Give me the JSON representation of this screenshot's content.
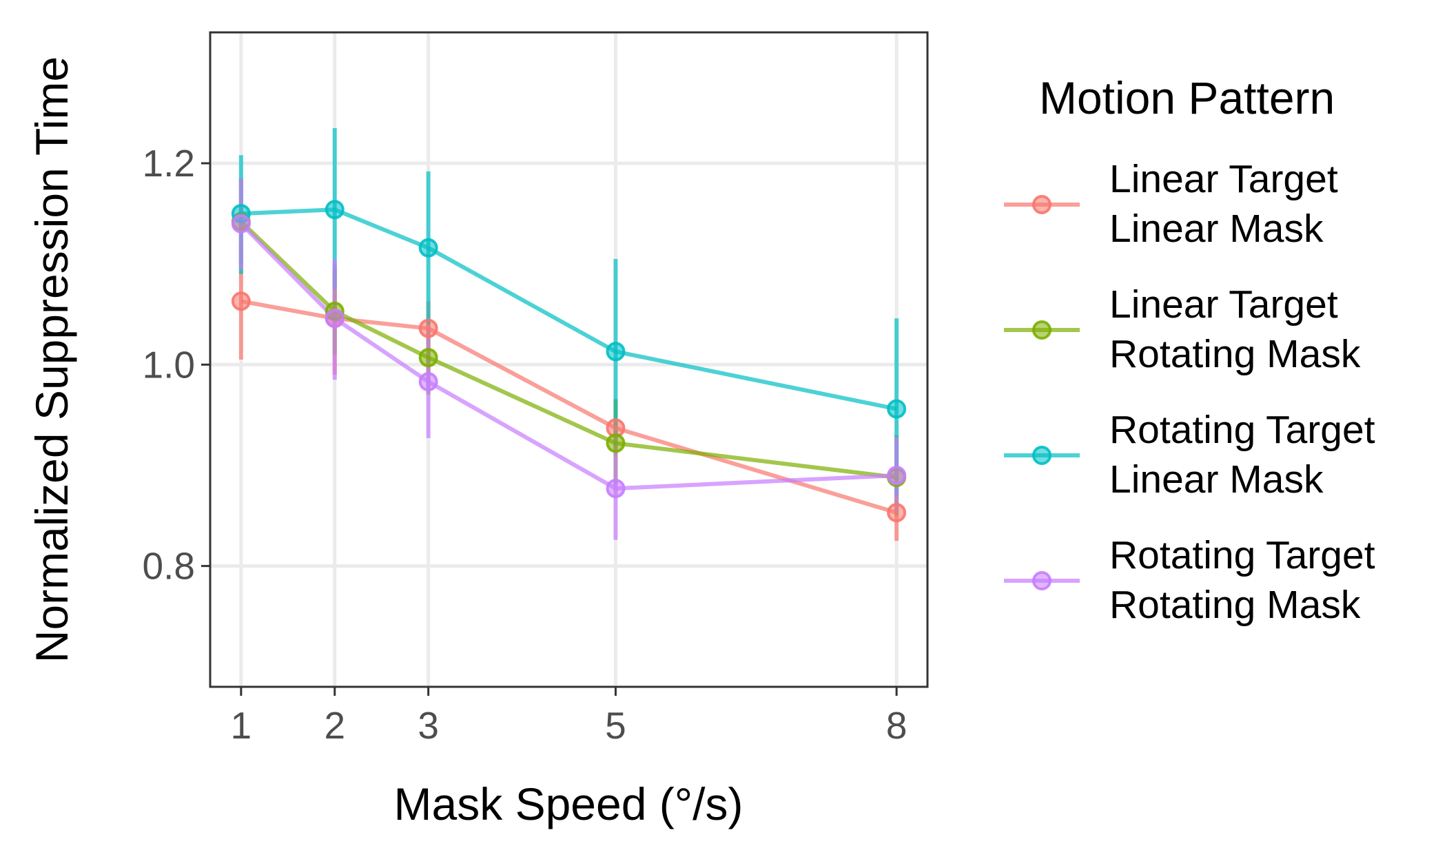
{
  "chart_data": {
    "type": "line",
    "title": "",
    "xlabel": "Mask Speed (°/s)",
    "ylabel": "Normalized Suppression Time",
    "x": [
      1,
      2,
      3,
      5,
      8
    ],
    "x_ticks": [
      "1",
      "2",
      "3",
      "5",
      "8"
    ],
    "xlim": [
      0.67,
      8.33
    ],
    "ylim": [
      0.68,
      1.33
    ],
    "y_ticks": [
      0.8,
      1.0,
      1.2
    ],
    "y_tick_labels": [
      "0.8",
      "1.0",
      "1.2"
    ],
    "grid": true,
    "legend_position": "right",
    "legend": {
      "title": "Motion Pattern"
    },
    "series": [
      {
        "name": "Linear Target\nLinear Mask",
        "label_lines": [
          "Linear Target",
          "Linear Mask"
        ],
        "color": "#F8766D",
        "values": [
          1.063,
          1.046,
          1.036,
          0.937,
          0.853
        ],
        "err_low": [
          1.005,
          0.99,
          0.99,
          0.91,
          0.825
        ],
        "err_high": [
          1.12,
          1.1,
          1.063,
          0.966,
          0.88
        ]
      },
      {
        "name": "Linear Target\nRotating Mask",
        "label_lines": [
          "Linear Target",
          "Rotating Mask"
        ],
        "color": "#7CAE00",
        "values": [
          1.142,
          1.053,
          1.007,
          0.922,
          0.888
        ],
        "err_low": [
          1.1,
          1.01,
          0.97,
          0.88,
          0.85
        ],
        "err_high": [
          1.185,
          1.095,
          1.045,
          0.965,
          0.93
        ]
      },
      {
        "name": "Rotating Target\nLinear Mask",
        "label_lines": [
          "Rotating Target",
          "Linear Mask"
        ],
        "color": "#00BFC4",
        "values": [
          1.15,
          1.154,
          1.116,
          1.013,
          0.956
        ],
        "err_low": [
          1.09,
          1.075,
          1.04,
          0.92,
          0.87
        ],
        "err_high": [
          1.208,
          1.235,
          1.192,
          1.105,
          1.046
        ]
      },
      {
        "name": "Rotating Target\nRotating Mask",
        "label_lines": [
          "Rotating Target",
          "Rotating Mask"
        ],
        "color": "#C77CFF",
        "values": [
          1.14,
          1.046,
          0.983,
          0.877,
          0.89
        ],
        "err_low": [
          1.095,
          0.985,
          0.927,
          0.826,
          0.852
        ],
        "err_high": [
          1.185,
          1.105,
          1.04,
          0.93,
          0.928
        ]
      }
    ]
  }
}
